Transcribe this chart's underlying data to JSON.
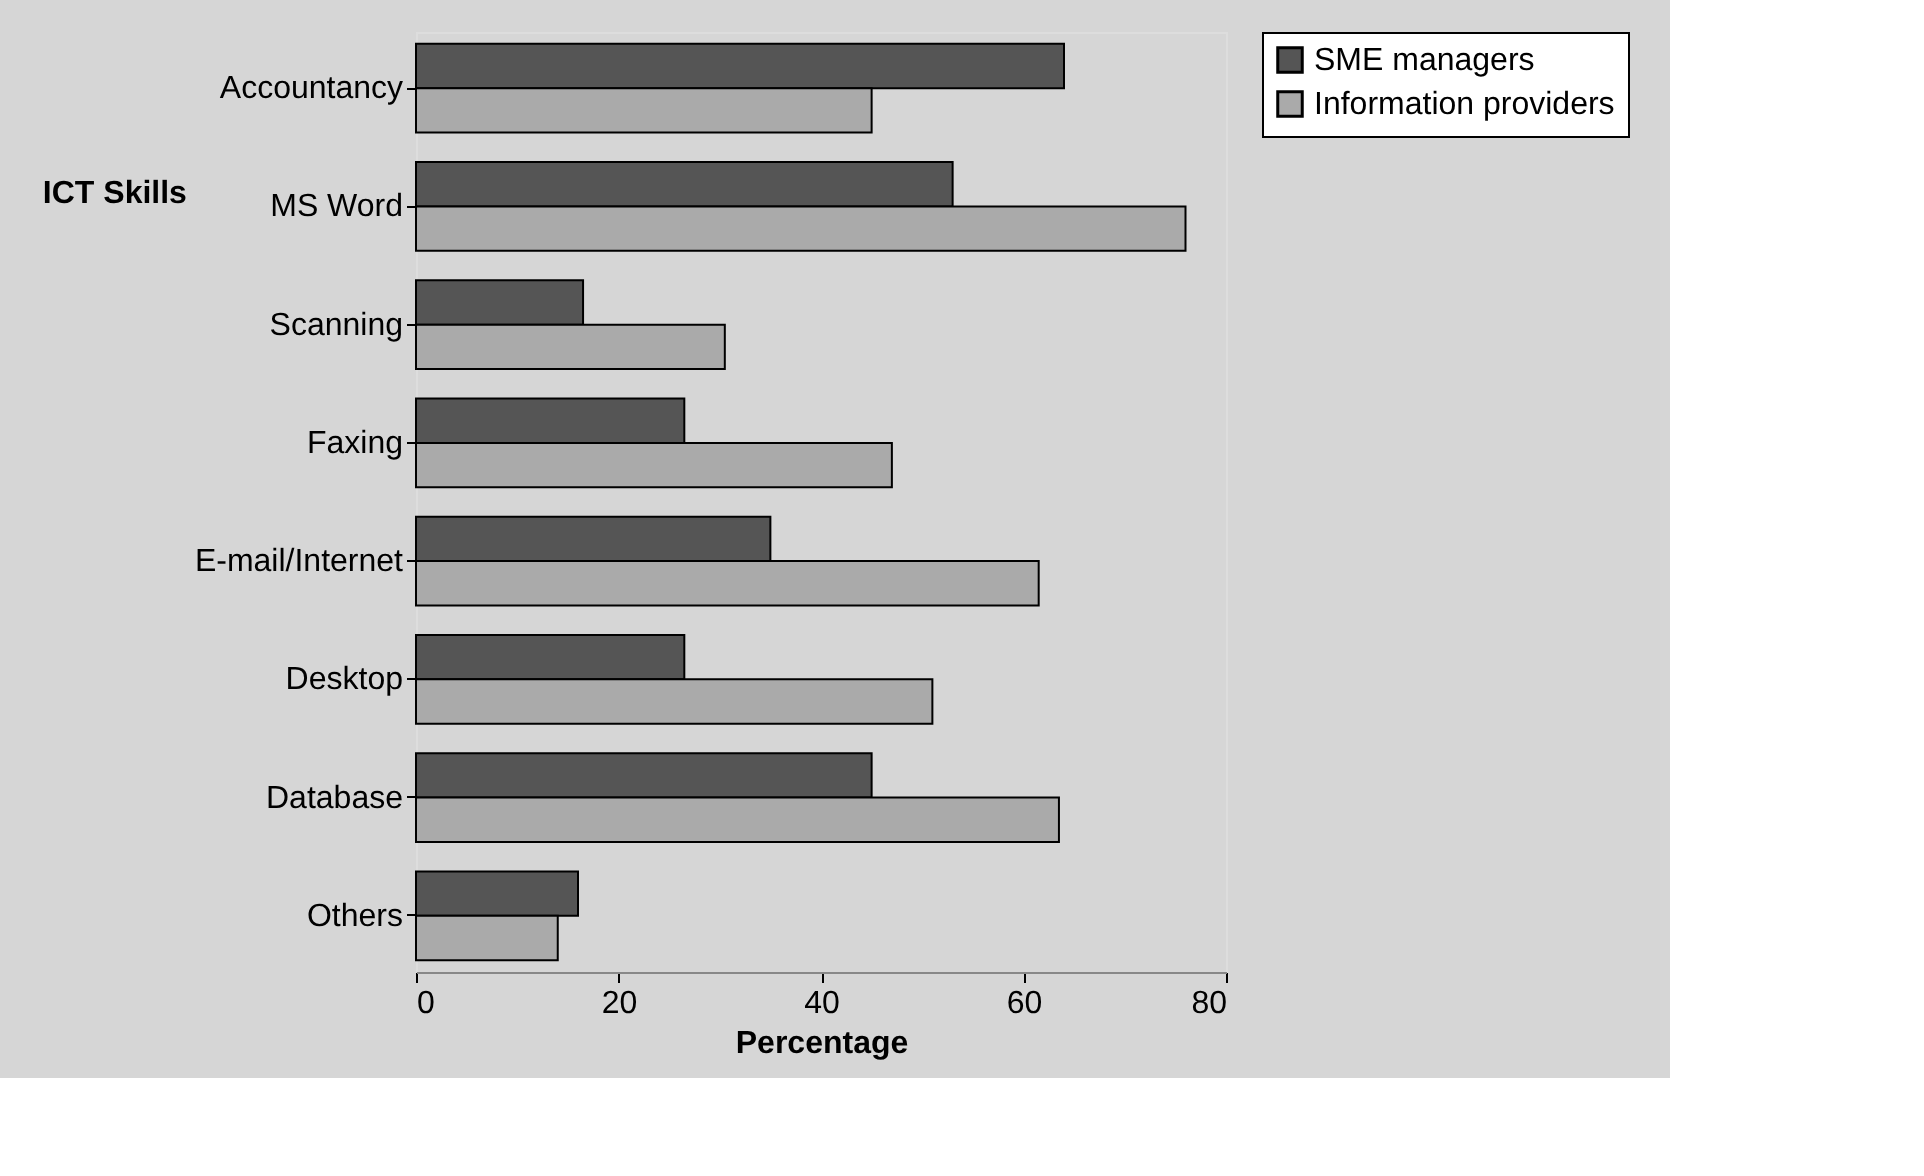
{
  "chart_data": {
    "type": "bar",
    "orientation": "horizontal",
    "xlabel": "Percentage",
    "ylabel": "ICT Skills",
    "categories": [
      "Accountancy",
      "MS Word",
      "Scanning",
      "Faxing",
      "E-mail/Internet",
      "Desktop",
      "Database",
      "Others"
    ],
    "series": [
      {
        "name": "SME managers",
        "color": "#555555",
        "values": [
          64,
          53,
          16.5,
          26.5,
          35,
          26.5,
          45,
          16
        ]
      },
      {
        "name": "Information providers",
        "color": "#aaaaaa",
        "values": [
          45,
          76,
          30.5,
          47,
          61.5,
          51,
          63.5,
          14
        ]
      }
    ],
    "xlim": [
      0,
      80
    ],
    "xticks": [
      0,
      20,
      40,
      60,
      80
    ],
    "grid": false,
    "legend": "right"
  }
}
